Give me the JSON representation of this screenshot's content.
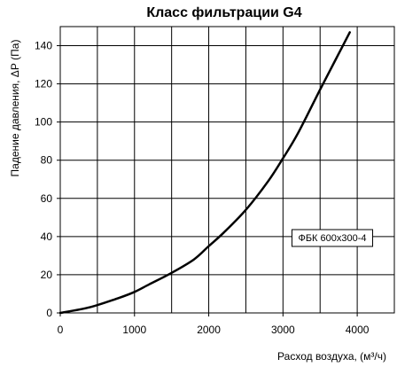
{
  "chart_data": {
    "type": "line",
    "title": "Класс фильтрации G4",
    "xlabel": "Расход воздуха, (м³/ч)",
    "ylabel": "Падение давления, ΔР (Па)",
    "xlim": [
      0,
      4500
    ],
    "ylim": [
      0,
      150
    ],
    "xticks": [
      0,
      1000,
      2000,
      3000,
      4000
    ],
    "yticks": [
      0,
      20,
      40,
      60,
      80,
      100,
      120,
      140
    ],
    "x_gridlines": [
      0,
      500,
      1000,
      1500,
      2000,
      2500,
      3000,
      3500,
      4000,
      4500
    ],
    "y_gridlines": [
      0,
      20,
      40,
      60,
      80,
      100,
      120,
      140
    ],
    "grid": true,
    "legend_position": "right",
    "series": [
      {
        "name": "ФБК 600x300-4",
        "color": "#000000",
        "x": [
          0,
          400,
          800,
          1000,
          1200,
          1500,
          1800,
          2000,
          2200,
          2500,
          2800,
          3000,
          3200,
          3500,
          3700,
          3900
        ],
        "y": [
          0,
          3,
          8,
          11,
          15,
          21,
          28,
          35,
          42,
          54,
          69,
          81,
          94,
          117,
          132,
          147
        ]
      }
    ]
  }
}
